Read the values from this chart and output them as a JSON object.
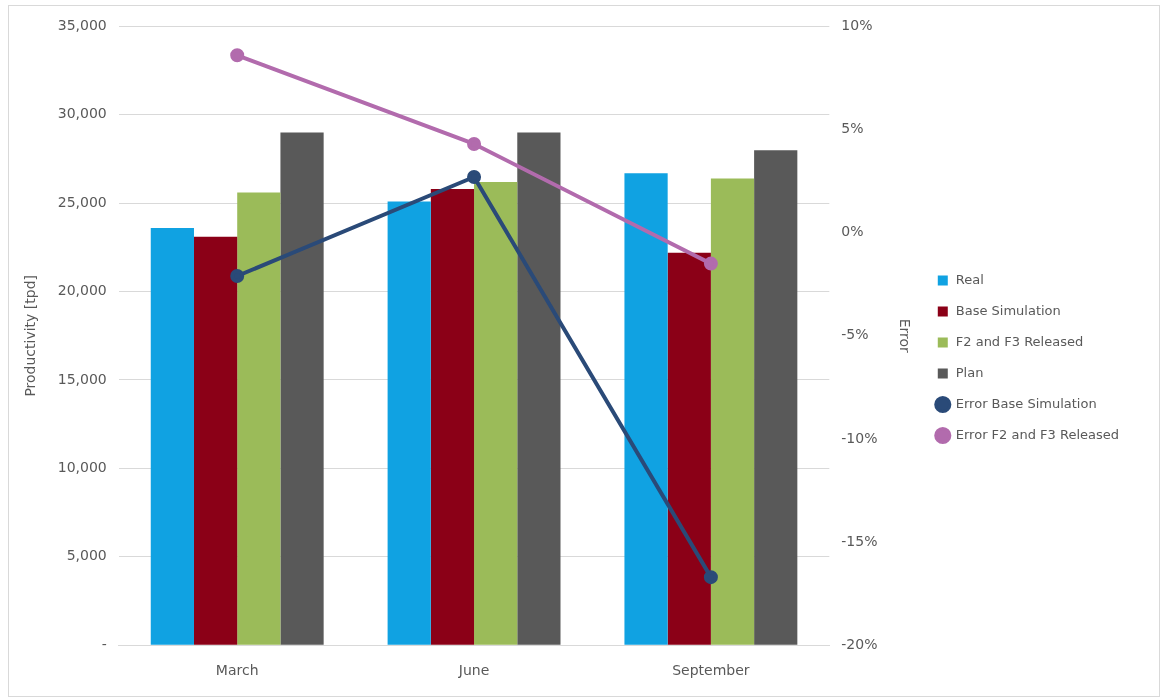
{
  "chart_data": {
    "type": "bar",
    "ylabel": "Productivity [tpd]",
    "y2label": "Error",
    "categories": [
      "March",
      "June",
      "September"
    ],
    "series": [
      {
        "name": "Real",
        "color": "#10a2e2",
        "values": [
          23600,
          25100,
          26700
        ]
      },
      {
        "name": "Base Simulation",
        "color": "#8b0017",
        "values": [
          23100,
          25800,
          22200
        ]
      },
      {
        "name": "F2 and F3 Released",
        "color": "#9bbb59",
        "values": [
          25600,
          26200,
          26400
        ]
      },
      {
        "name": "Plan",
        "color": "#595959",
        "values": [
          29000,
          29000,
          28000
        ]
      },
      {
        "name": "Error Base Simulation",
        "type": "line",
        "axis": "y2",
        "color": "#2a4a78",
        "values": [
          -2.1,
          2.7,
          -16.7
        ]
      },
      {
        "name": "Error F2 and F3 Released",
        "type": "line",
        "axis": "y2",
        "color": "#b26bad",
        "values": [
          8.6,
          4.3,
          -1.5
        ]
      }
    ],
    "ylim": [
      0,
      35000
    ],
    "yticks": [
      {
        "value": 0,
        "label": "-"
      },
      {
        "value": 5000,
        "label": "5,000"
      },
      {
        "value": 10000,
        "label": "10,000"
      },
      {
        "value": 15000,
        "label": "15,000"
      },
      {
        "value": 20000,
        "label": "20,000"
      },
      {
        "value": 25000,
        "label": "25,000"
      },
      {
        "value": 30000,
        "label": "30,000"
      },
      {
        "value": 35000,
        "label": "35,000"
      }
    ],
    "y2lim": [
      -20,
      10
    ],
    "y2ticks": [
      {
        "value": -20,
        "label": "-20%"
      },
      {
        "value": -15,
        "label": "-15%"
      },
      {
        "value": -10,
        "label": "-10%"
      },
      {
        "value": -5,
        "label": "-5%"
      },
      {
        "value": 0,
        "label": "0%"
      },
      {
        "value": 5,
        "label": "5%"
      },
      {
        "value": 10,
        "label": "10%"
      }
    ],
    "grid": "y",
    "legend": "right",
    "marker": "circle"
  }
}
